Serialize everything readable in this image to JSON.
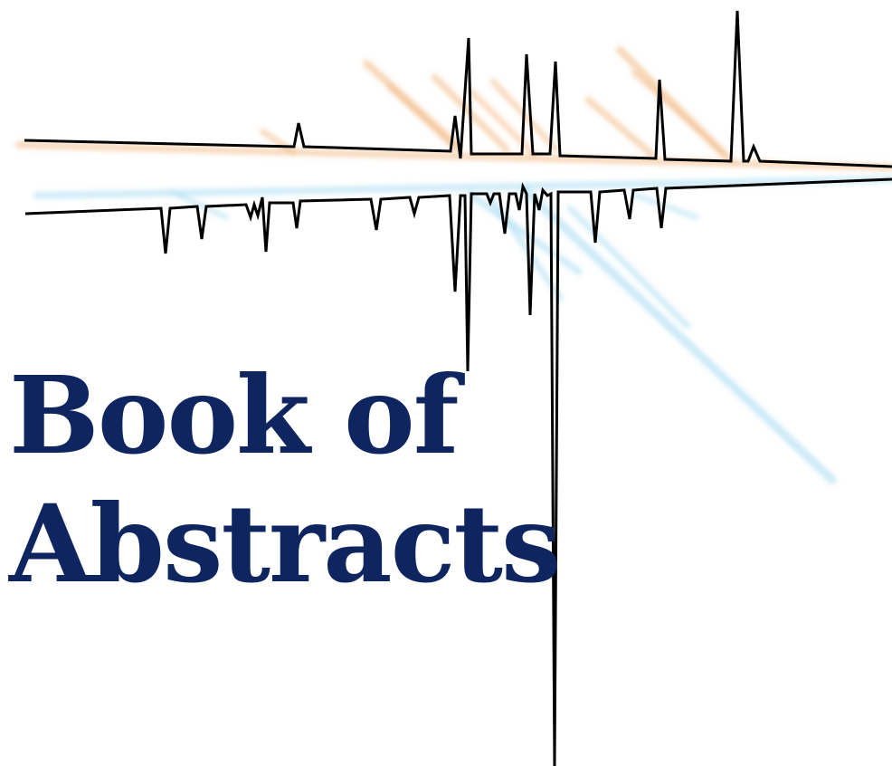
{
  "cover": {
    "title_line_1": "Book of",
    "title_line_2": "Abstracts"
  },
  "colors": {
    "title": "#0e2560",
    "spectrum_line": "#000000",
    "upper_glow": "#f0b27a",
    "lower_glow": "#a9dcf2"
  }
}
